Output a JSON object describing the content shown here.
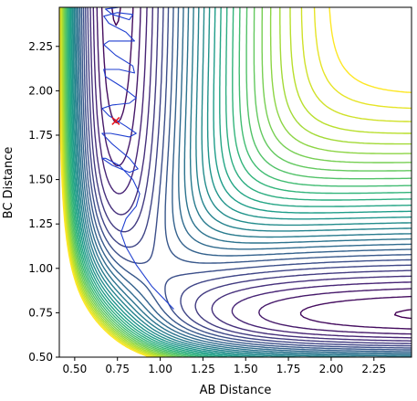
{
  "chart_data": {
    "type": "contour",
    "title": "",
    "xlabel": "AB Distance",
    "ylabel": "BC Distance",
    "xlim": [
      0.41,
      2.47
    ],
    "ylim": [
      0.5,
      2.47
    ],
    "xticks": [
      0.5,
      0.75,
      1.0,
      1.25,
      1.5,
      1.75,
      2.0,
      2.25
    ],
    "xtick_labels": [
      "0.50",
      "0.75",
      "1.00",
      "1.25",
      "1.50",
      "1.75",
      "2.00",
      "2.25"
    ],
    "yticks": [
      0.5,
      0.75,
      1.0,
      1.25,
      1.5,
      1.75,
      2.0,
      2.25
    ],
    "ytick_labels": [
      "0.50",
      "0.75",
      "1.00",
      "1.25",
      "1.50",
      "1.75",
      "2.00",
      "2.25"
    ],
    "grid": false,
    "colormap": "viridis",
    "colors": {
      "trajectory": "#1f3fd0",
      "marker": "#e8141c",
      "axes": "#000000"
    },
    "contour_levels": 30,
    "surface_minimum": {
      "x": 2.45,
      "y": 0.74
    },
    "marker": {
      "symbol": "x",
      "x": 0.74,
      "y": 1.83
    },
    "trajectory": {
      "x": [
        1.08,
        0.95,
        0.86,
        0.8,
        0.77,
        0.8,
        0.86,
        0.88,
        0.84,
        0.76,
        0.68,
        0.66,
        0.72,
        0.82,
        0.87,
        0.82,
        0.72,
        0.66,
        0.71,
        0.82,
        0.86,
        0.8,
        0.7,
        0.66,
        0.72,
        0.82,
        0.86,
        0.78,
        0.68,
        0.67,
        0.76,
        0.85,
        0.84,
        0.74,
        0.67,
        0.7,
        0.8,
        0.85,
        0.8,
        0.7,
        0.67,
        0.75,
        0.84,
        0.82,
        0.72,
        0.68,
        0.76,
        0.84
      ],
      "y": [
        0.77,
        0.9,
        1.02,
        1.12,
        1.2,
        1.28,
        1.35,
        1.42,
        1.5,
        1.58,
        1.62,
        1.62,
        1.58,
        1.54,
        1.56,
        1.62,
        1.7,
        1.76,
        1.76,
        1.74,
        1.76,
        1.8,
        1.86,
        1.9,
        1.92,
        1.93,
        1.96,
        2.02,
        2.08,
        2.12,
        2.12,
        2.1,
        2.14,
        2.2,
        2.26,
        2.28,
        2.28,
        2.28,
        2.33,
        2.38,
        2.42,
        2.44,
        2.43,
        2.4,
        2.43,
        2.46,
        2.47,
        2.47
      ]
    }
  }
}
